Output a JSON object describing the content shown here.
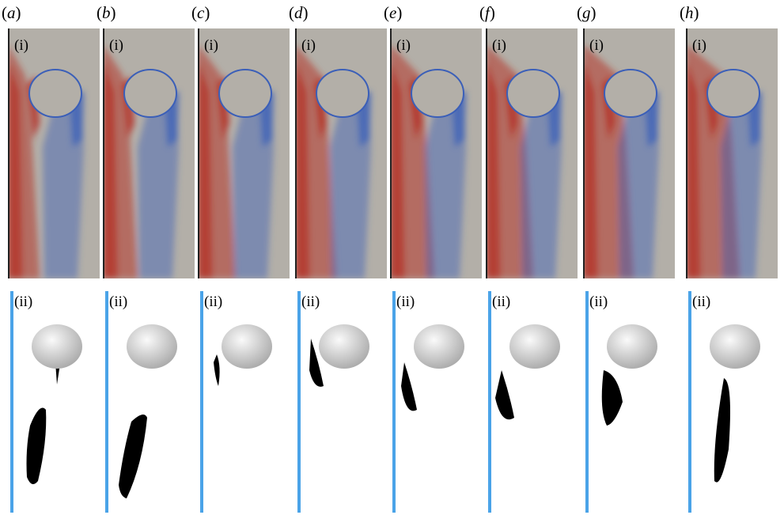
{
  "panels": [
    {
      "letter": "a",
      "top_label": "(i)",
      "bottom_label": "(ii)"
    },
    {
      "letter": "b",
      "top_label": "(i)",
      "bottom_label": "(ii)"
    },
    {
      "letter": "c",
      "top_label": "(i)",
      "bottom_label": "(ii)"
    },
    {
      "letter": "d",
      "top_label": "(i)",
      "bottom_label": "(ii)"
    },
    {
      "letter": "e",
      "top_label": "(i)",
      "bottom_label": "(ii)"
    },
    {
      "letter": "f",
      "top_label": "(i)",
      "bottom_label": "(ii)"
    },
    {
      "letter": "g",
      "top_label": "(i)",
      "bottom_label": "(ii)"
    },
    {
      "letter": "h",
      "top_label": "(i)",
      "bottom_label": "(ii)"
    }
  ],
  "colors": {
    "background_field": "#b3afa8",
    "positive": "#b4342a",
    "negative": "#3b5fb8",
    "wall": "#4aa3e8",
    "vapour": "#000000",
    "bubble": "#e6e6e6"
  }
}
